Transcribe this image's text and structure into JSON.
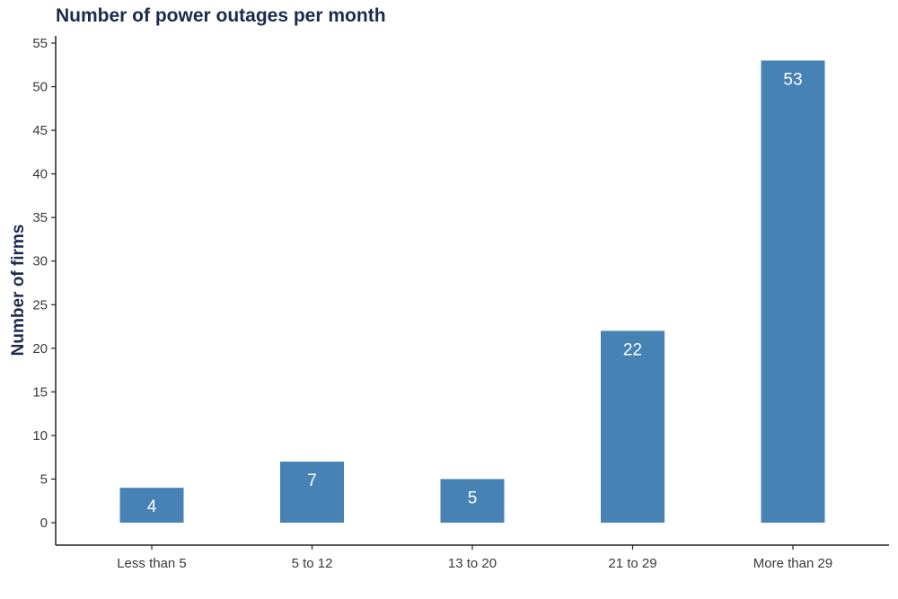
{
  "chart_data": {
    "type": "bar",
    "title": "Number of power outages per month",
    "xlabel": "",
    "ylabel": "Number of firms",
    "categories": [
      "Less than 5",
      "5 to 12",
      "13 to 20",
      "21 to 29",
      "More than 29"
    ],
    "values": [
      4,
      7,
      5,
      22,
      53
    ],
    "data_labels": [
      "4",
      "7",
      "5",
      "22",
      "53"
    ],
    "ylim": [
      0,
      55
    ],
    "yticks": [
      0,
      5,
      10,
      15,
      20,
      25,
      30,
      35,
      40,
      45,
      50,
      55
    ],
    "bar_color": "#4682b4",
    "label_color": "#ffffff",
    "title_color": "#1b2a4e",
    "grid": false,
    "legend": "none"
  }
}
